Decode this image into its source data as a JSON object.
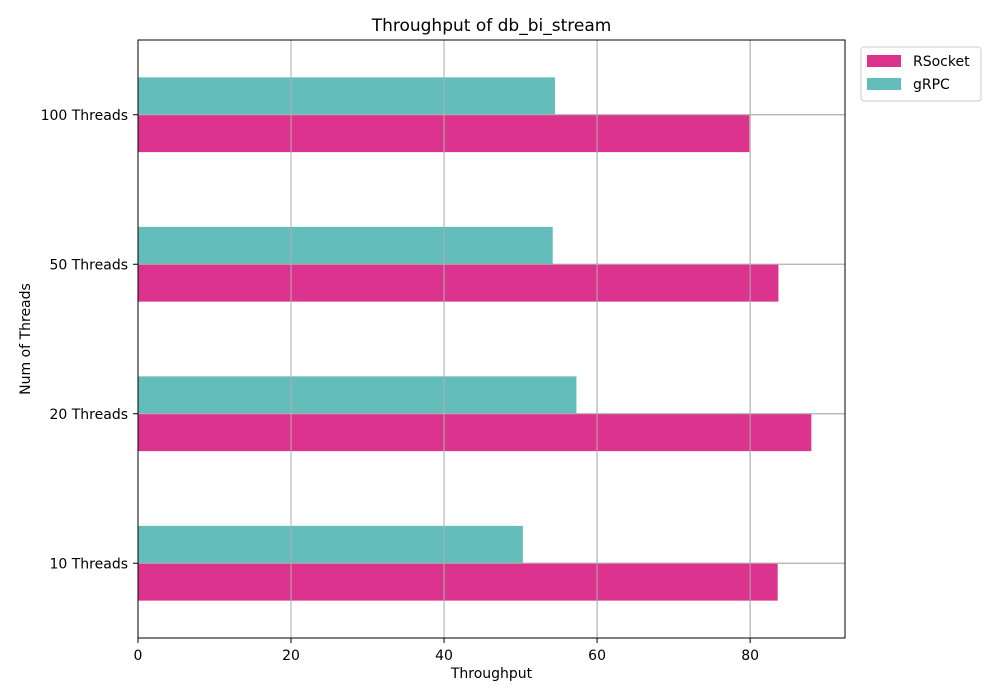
{
  "chart_data": {
    "type": "bar",
    "orientation": "horizontal",
    "title": "Throughput of db_bi_stream",
    "xlabel": "Throughput",
    "ylabel": "Num of Threads",
    "categories": [
      "10 Threads",
      "20 Threads",
      "50 Threads",
      "100 Threads"
    ],
    "series": [
      {
        "name": "RSocket",
        "color": "#dc338e",
        "values": [
          83.6,
          88.0,
          83.7,
          79.9
        ]
      },
      {
        "name": "gRPC",
        "color": "#62bdbb",
        "values": [
          50.3,
          57.3,
          54.2,
          54.5
        ]
      }
    ],
    "xlim": [
      0,
      92.4
    ],
    "xticks": [
      0,
      20,
      40,
      60,
      80
    ],
    "grid": true,
    "legend_position": "outside-top-right"
  }
}
